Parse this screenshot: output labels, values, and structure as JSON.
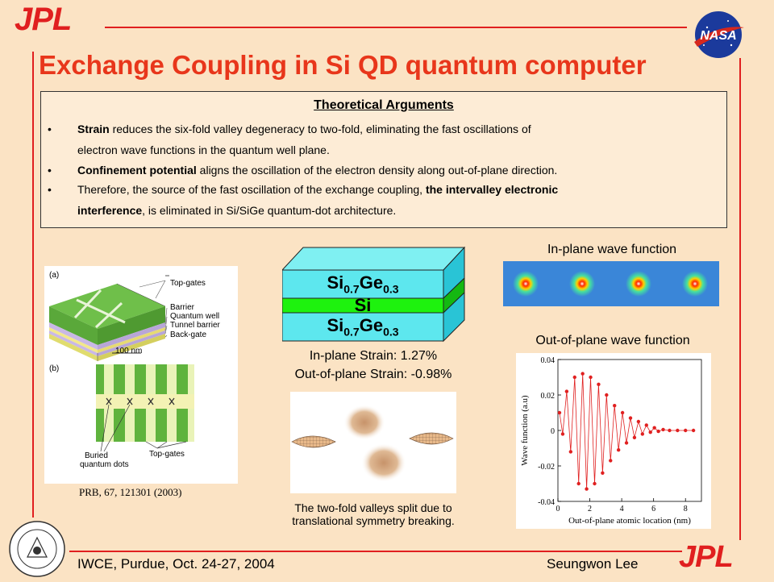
{
  "header": {
    "logo_left": "JPL",
    "logo_right_alt": "NASA",
    "title": "Exchange Coupling in Si QD quantum computer"
  },
  "arguments": {
    "heading": "Theoretical Arguments",
    "bullet_symbol": "•",
    "b1_bold": "Strain",
    "b1_rest": " reduces the six-fold valley degeneracy to two-fold, eliminating the fast oscillations of",
    "b1_line2": "electron wave functions in the quantum well plane.",
    "b2_bold": "Confinement potential",
    "b2_rest": " aligns the oscillation of the electron density along out-of-plane direction.",
    "b3_rest1": "Therefore, the source of the fast oscillation of the exchange coupling, ",
    "b3_bold": "the intervalley electronic",
    "b3_bold2": "interference",
    "b3_rest2": ", is eliminated in Si/SiGe quantum-dot architecture."
  },
  "device_figure": {
    "label_a": "(a)",
    "label_b": "(b)",
    "top_gates": "Top-gates",
    "barrier": "Barrier",
    "quantum_well": "Quantum well",
    "tunnel_barrier": "Tunnel barrier",
    "back_gate": "Back-gate",
    "scale": "100 nm",
    "buried": "Buried",
    "quantum_dots": "quantum dots",
    "top_gates_b": "Top-gates",
    "reference": "PRB, 67, 121301 (2003)"
  },
  "stack": {
    "top_layer_base": "Si",
    "top_layer_sub1": "0.7",
    "top_layer_mid": "Ge",
    "top_layer_sub2": "0.3",
    "middle_layer": "Si",
    "bottom_layer_base": "Si",
    "bottom_layer_sub1": "0.7",
    "bottom_layer_mid": "Ge",
    "bottom_layer_sub2": "0.3",
    "strain_in": "In-plane Strain: 1.27%",
    "strain_out": "Out-of-plane Strain: -0.98%",
    "valley_caption_1": "The two-fold valleys split due to",
    "valley_caption_2": "translational symmetry breaking."
  },
  "in_plane": {
    "title": "In-plane wave function"
  },
  "out_of_plane": {
    "title": "Out-of-plane wave function",
    "ylabel": "Wave function (a.u)",
    "xlabel": "Out-of-plane atomic location (nm)",
    "y_ticks": [
      "0.04",
      "0.02",
      "0",
      "-0.02",
      "-0.04"
    ],
    "x_ticks": [
      "0",
      "2",
      "4",
      "6",
      "8"
    ]
  },
  "chart_data": {
    "type": "line",
    "title": "Out-of-plane wave function",
    "xlabel": "Out-of-plane atomic location (nm)",
    "ylabel": "Wave function (a.u)",
    "xlim": [
      0,
      9
    ],
    "ylim": [
      -0.04,
      0.04
    ],
    "x": [
      0.1,
      0.3,
      0.55,
      0.8,
      1.05,
      1.3,
      1.55,
      1.8,
      2.05,
      2.3,
      2.55,
      2.8,
      3.05,
      3.3,
      3.55,
      3.8,
      4.05,
      4.3,
      4.55,
      4.8,
      5.05,
      5.3,
      5.55,
      5.8,
      6.05,
      6.3,
      6.6,
      7.0,
      7.5,
      8.0,
      8.5
    ],
    "values": [
      0.01,
      -0.002,
      0.022,
      -0.012,
      0.03,
      -0.03,
      0.032,
      -0.033,
      0.03,
      -0.03,
      0.026,
      -0.024,
      0.02,
      -0.017,
      0.014,
      -0.011,
      0.01,
      -0.007,
      0.007,
      -0.004,
      0.005,
      -0.002,
      0.003,
      -0.001,
      0.0015,
      -0.0005,
      0.0005,
      0.0,
      0.0,
      0.0,
      0.0
    ],
    "color": "#e02020",
    "grid": false
  },
  "footer": {
    "left": "IWCE, Purdue, Oct. 24-27, 2004",
    "right": "Seungwon Lee",
    "logo": "JPL"
  },
  "colors": {
    "accent": "#e01f1f",
    "title": "#e8361b",
    "background": "#fbe3c4"
  }
}
